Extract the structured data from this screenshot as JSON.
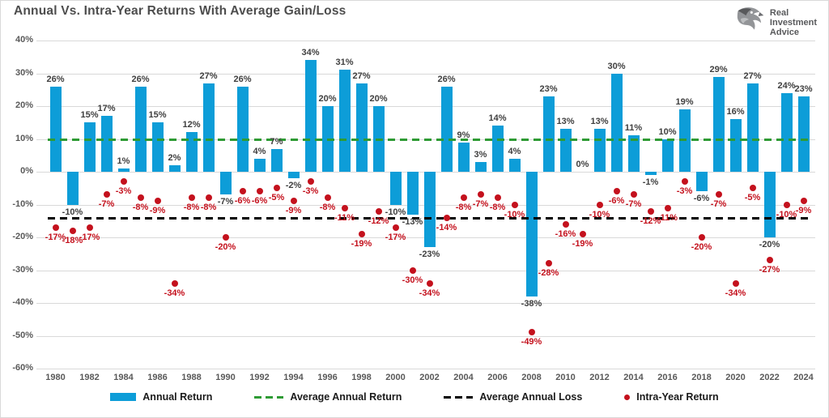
{
  "header": {
    "title": "Annual Vs. Intra-Year Returns With Average Gain/Loss",
    "logo": {
      "line1": "Real",
      "line2": "Investment",
      "line3": "Advice"
    }
  },
  "chart_data": {
    "type": "bar",
    "title": "Annual Vs. Intra-Year Returns With Average Gain/Loss",
    "categories": [
      1980,
      1981,
      1982,
      1983,
      1984,
      1985,
      1986,
      1987,
      1988,
      1989,
      1990,
      1991,
      1992,
      1993,
      1994,
      1995,
      1996,
      1997,
      1998,
      1999,
      2000,
      2001,
      2002,
      2003,
      2004,
      2005,
      2006,
      2007,
      2008,
      2009,
      2010,
      2011,
      2012,
      2013,
      2014,
      2015,
      2016,
      2017,
      2018,
      2019,
      2020,
      2021,
      2022,
      2023,
      2024
    ],
    "series": [
      {
        "name": "Annual Return",
        "type": "bar",
        "color": "#0d9dd8",
        "values": [
          26,
          -10,
          15,
          17,
          1,
          26,
          15,
          2,
          12,
          27,
          -7,
          26,
          4,
          7,
          -2,
          34,
          20,
          31,
          27,
          20,
          -10,
          -13,
          -23,
          26,
          9,
          3,
          14,
          4,
          -38,
          23,
          13,
          0,
          13,
          30,
          11,
          -1,
          10,
          19,
          -6,
          29,
          16,
          27,
          -20,
          24,
          23
        ]
      },
      {
        "name": "Intra-Year Return",
        "type": "scatter",
        "color": "#c4111d",
        "values": [
          -17,
          -18,
          -17,
          -7,
          -3,
          -8,
          -9,
          -34,
          -8,
          -8,
          -20,
          -6,
          -6,
          -5,
          -9,
          -3,
          -8,
          -11,
          -19,
          -12,
          -17,
          -30,
          -34,
          -14,
          -8,
          -7,
          -8,
          -10,
          -49,
          -28,
          -16,
          -19,
          -10,
          -6,
          -7,
          -12,
          -11,
          -3,
          -20,
          -7,
          -34,
          -5,
          -27,
          -10,
          -9
        ]
      }
    ],
    "reference_lines": [
      {
        "name": "Average Annual Return",
        "value": 10,
        "color": "#2e9b34",
        "style": "dashed"
      },
      {
        "name": "Average Annual Loss",
        "value": -14,
        "color": "#000000",
        "style": "dashed"
      }
    ],
    "ylim": [
      -60,
      40
    ],
    "ytick_step": 10,
    "ytick_labels": [
      "40%",
      "30%",
      "20%",
      "10%",
      "0%",
      "-10%",
      "-20%",
      "-30%",
      "-40%",
      "-50%",
      "-60%"
    ],
    "xtick_labels": [
      "1980",
      "1982",
      "1984",
      "1986",
      "1988",
      "1990",
      "1992",
      "1994",
      "1996",
      "1998",
      "2000",
      "2002",
      "2004",
      "2006",
      "2008",
      "2010",
      "2012",
      "2014",
      "2016",
      "2018",
      "2020",
      "2022",
      "2024"
    ],
    "grid": true,
    "legend_position": "bottom"
  },
  "legend": {
    "items": [
      {
        "label": "Annual Return",
        "swatch": "bar",
        "color": "#0d9dd8"
      },
      {
        "label": "Average Annual Return",
        "swatch": "dash",
        "color": "#2e9b34"
      },
      {
        "label": "Average Annual Loss",
        "swatch": "dash",
        "color": "#000000"
      },
      {
        "label": "Intra-Year Return",
        "swatch": "dot",
        "color": "#c4111d"
      }
    ]
  },
  "colors": {
    "bar": "#0d9dd8",
    "dot": "#c4111d",
    "avg_gain_line": "#2e9b34",
    "avg_loss_line": "#000000",
    "bar_label": "#404040",
    "axis_label": "#595959",
    "gridline": "#d9d9d9"
  }
}
